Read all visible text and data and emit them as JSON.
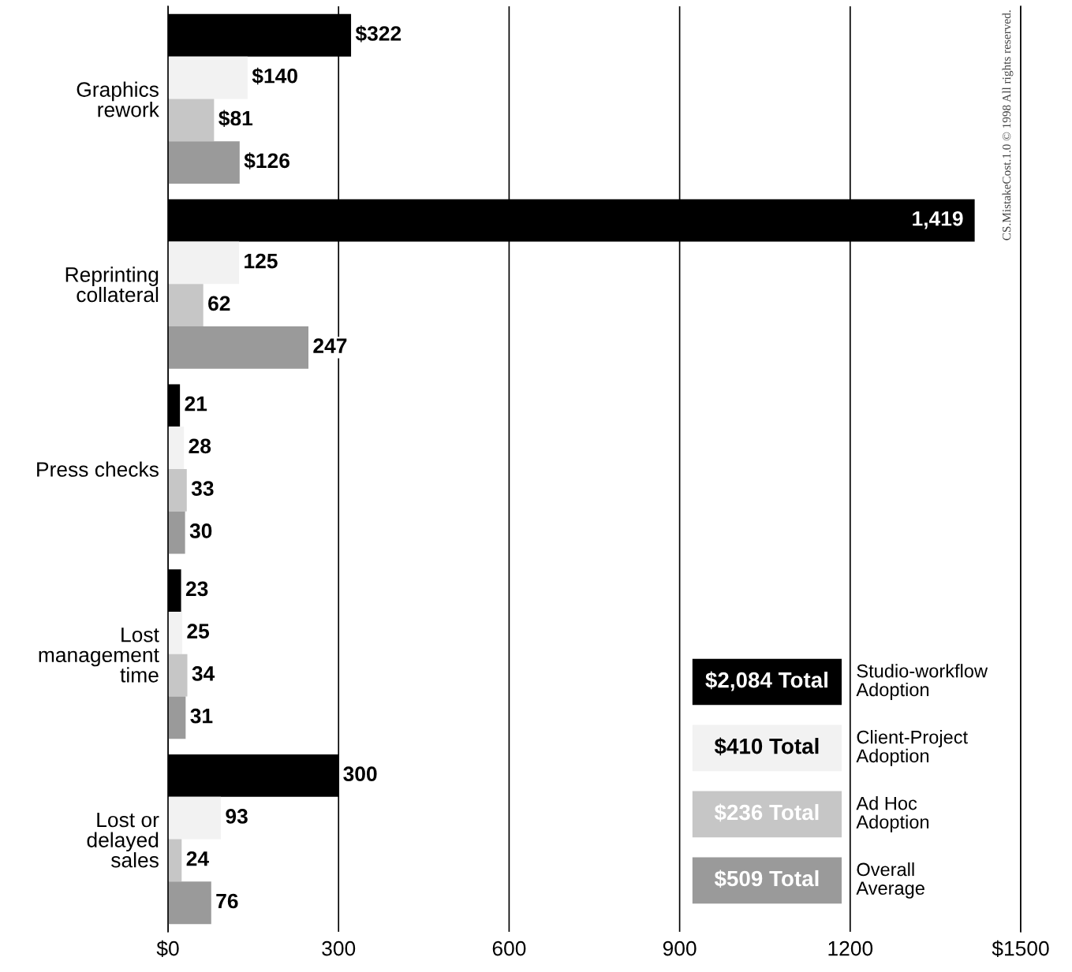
{
  "chart_data": {
    "type": "bar",
    "orientation": "horizontal",
    "categories": [
      "Graphics\nrework",
      "Reprinting\ncollateral",
      "Press checks",
      "Lost\nmanagement\ntime",
      "Lost or\ndelayed\nsales"
    ],
    "series": [
      {
        "name": "Studio-workflow\nAdoption",
        "color": "#000000",
        "values": [
          322,
          1419,
          21,
          23,
          300
        ],
        "value_labels": [
          "$322",
          "1,419",
          "21",
          "23",
          "300"
        ]
      },
      {
        "name": "Client-Project\nAdoption",
        "color": "#f2f2f2",
        "values": [
          140,
          125,
          28,
          25,
          93
        ],
        "value_labels": [
          "$140",
          "125",
          "28",
          "25",
          "93"
        ]
      },
      {
        "name": "Ad Hoc\nAdoption",
        "color": "#c6c6c6",
        "values": [
          81,
          62,
          33,
          34,
          24
        ],
        "value_labels": [
          "$81",
          "62",
          "33",
          "34",
          "24"
        ]
      },
      {
        "name": "Overall\nAverage",
        "color": "#9a9a9a",
        "values": [
          126,
          247,
          30,
          31,
          76
        ],
        "value_labels": [
          "$126",
          "247",
          "30",
          "31",
          "76"
        ]
      }
    ],
    "xlim": [
      0,
      1500
    ],
    "xticks": [
      {
        "value": 0,
        "label": "$0"
      },
      300,
      600,
      900,
      1200,
      {
        "value": 1500,
        "label": "$1500"
      }
    ],
    "grid": "x",
    "legend": "bottom right",
    "annotations": [
      "$2,084 Total",
      "$410 Total",
      "$236 Total",
      "$509 Total",
      "CS.MistakeCost.1.0 © 1998 All rights reserved."
    ]
  }
}
